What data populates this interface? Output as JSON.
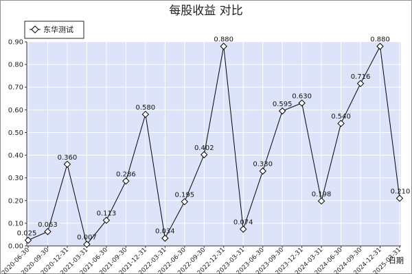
{
  "chart_data": {
    "type": "line",
    "title": "每股收益  对比",
    "xlabel": "日期",
    "ylabel": "",
    "ylim": [
      0,
      0.9
    ],
    "yticks": [
      "0.00",
      "0.10",
      "0.20",
      "0.30",
      "0.40",
      "0.50",
      "0.60",
      "0.70",
      "0.80",
      "0.90"
    ],
    "legend": "top-left",
    "grid": true,
    "categories": [
      "2020-06-30",
      "2020-09-30",
      "2020-12-31",
      "2021-03-31",
      "2021-06-30",
      "2021-09-30",
      "2021-12-31",
      "2022-03-31",
      "2022-06-30",
      "2022-09-30",
      "2022-12-31",
      "2023-03-31",
      "2023-06-30",
      "2023-09-30",
      "2023-12-31",
      "2024-03-31",
      "2024-06-30",
      "2024-09-30",
      "2024-12-31",
      "2025-03-31"
    ],
    "series": [
      {
        "name": "东华测试",
        "values": [
          0.025,
          0.063,
          0.36,
          0.007,
          0.113,
          0.286,
          0.58,
          0.034,
          0.195,
          0.402,
          0.88,
          0.074,
          0.33,
          0.595,
          0.63,
          0.198,
          0.54,
          0.716,
          0.88,
          0.21
        ],
        "labels": [
          "0.025",
          "0.063",
          "0.360",
          "0.007",
          "0.113",
          "0.286",
          "0.580",
          "0.034",
          "0.195",
          "0.402",
          "0.880",
          "0.074",
          "0.330",
          "0.595",
          "0.630",
          "0.198",
          "0.540",
          "0.716",
          "0.880",
          "0.210"
        ]
      }
    ],
    "colors": {
      "plot_bg": "#dde3f8",
      "grid": "#ffffff",
      "line": "#000000"
    }
  }
}
